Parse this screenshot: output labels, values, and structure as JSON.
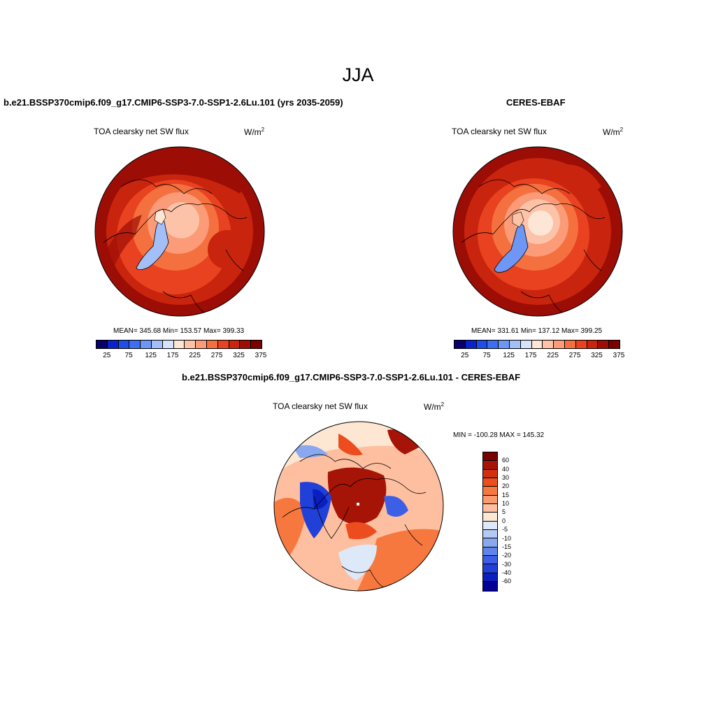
{
  "main_title": "JJA",
  "panels": [
    {
      "title": "b.e21.BSSP370cmip6.f09_g17.CMIP6-SSP3-7.0-SSP1-2.6Lu.101 (yrs 2035-2059)",
      "variable": "TOA clearsky net SW flux",
      "units": "W/m",
      "units_sup": "2",
      "stats": "MEAN= 345.68  Min= 153.57  Max= 399.33"
    },
    {
      "title": "CERES-EBAF",
      "variable": "TOA clearsky net SW flux",
      "units": "W/m",
      "units_sup": "2",
      "stats": "MEAN= 331.61  Min= 137.12  Max= 399.25"
    },
    {
      "title": "b.e21.BSSP370cmip6.f09_g17.CMIP6-SSP3-7.0-SSP1-2.6Lu.101 - CERES-EBAF",
      "variable": "TOA clearsky net SW flux",
      "units": "W/m",
      "units_sup": "2",
      "minmax": "MIN = -100.28 MAX = 145.32"
    }
  ],
  "colorbar_abs": {
    "colors": [
      "#08006b",
      "#0a23c8",
      "#1f4de6",
      "#3e6ff0",
      "#6d96f5",
      "#a2bff8",
      "#d6e4fb",
      "#fde6d6",
      "#fdc3a8",
      "#fb9b78",
      "#f5703f",
      "#e84220",
      "#c9240d",
      "#9c0d06",
      "#7a0000"
    ],
    "labels": [
      "25",
      "75",
      "125",
      "175",
      "225",
      "275",
      "325",
      "375"
    ]
  },
  "colorbar_diff": {
    "colors": [
      "#7a0000",
      "#a51407",
      "#d0300e",
      "#ed4d1e",
      "#f7783f",
      "#fb9a6e",
      "#fdbf9f",
      "#fde7d2",
      "#dde8f8",
      "#b3cbf4",
      "#8aa8f0",
      "#5f84ec",
      "#3c5fe6",
      "#2040d8",
      "#0a1fc0",
      "#020097"
    ],
    "labels": [
      "60",
      "40",
      "30",
      "20",
      "15",
      "10",
      "5",
      "0",
      "-5",
      "-10",
      "-15",
      "-20",
      "-30",
      "-40",
      "-60"
    ]
  }
}
